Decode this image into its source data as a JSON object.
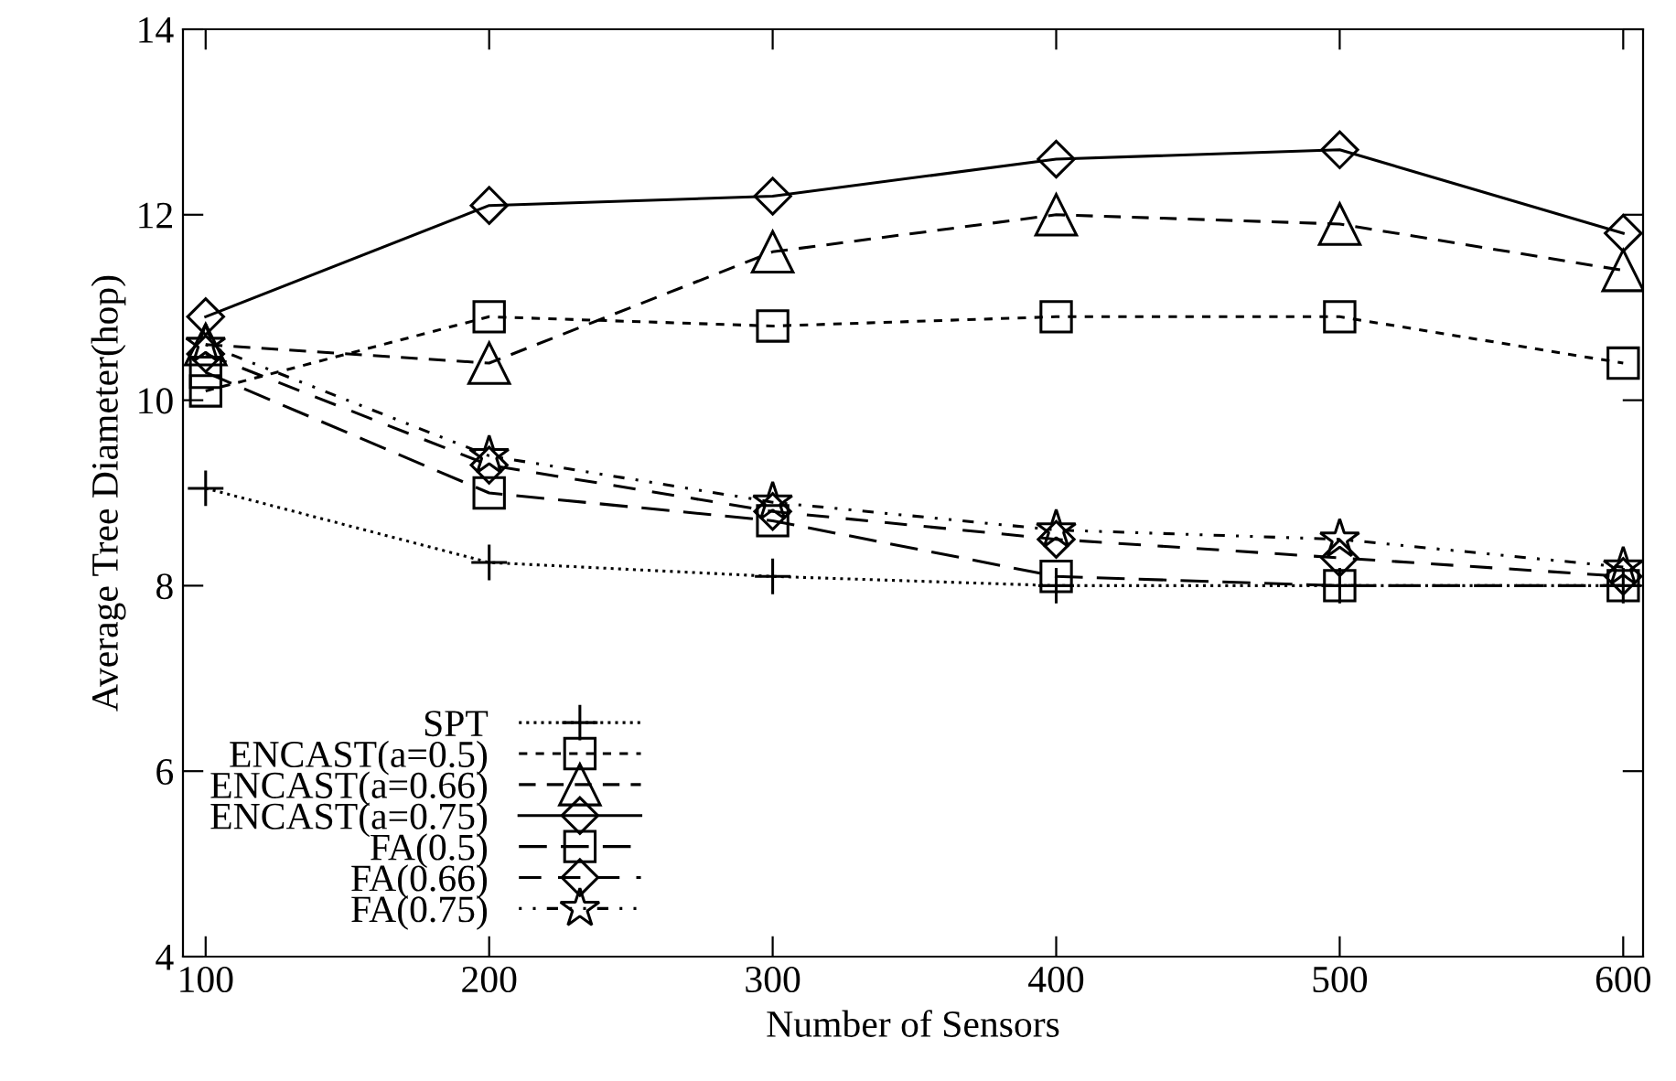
{
  "chart_data": {
    "type": "line",
    "xlabel": "Number of Sensors",
    "ylabel": "Average Tree Diameter(hop)",
    "x": [
      100,
      200,
      300,
      400,
      500,
      600
    ],
    "xlim": [
      92,
      607
    ],
    "xticks": [
      100,
      200,
      300,
      400,
      500,
      600
    ],
    "ylim": [
      4,
      14
    ],
    "yticks": [
      4,
      6,
      8,
      10,
      12,
      14
    ],
    "grid": false,
    "legend": "bottom left",
    "series": [
      {
        "name": "SPT",
        "color": "#000000",
        "marker": "cross",
        "line_style": "dotted",
        "values": [
          9.05,
          8.25,
          8.1,
          8.0,
          8.0,
          8.0
        ]
      },
      {
        "name": "ENCAST(a=0.5)",
        "color": "#000000",
        "marker": "square",
        "line_style": "dashed",
        "values": [
          10.1,
          10.9,
          10.8,
          10.9,
          10.9,
          10.4
        ]
      },
      {
        "name": "ENCAST(a=0.66)",
        "color": "#000000",
        "marker": "triangle",
        "line_style": "dashed",
        "values": [
          10.6,
          10.4,
          11.6,
          12.0,
          11.9,
          11.4
        ]
      },
      {
        "name": "ENCAST(a=0.75)",
        "color": "#000000",
        "marker": "diamond",
        "line_style": "solid",
        "values": [
          10.9,
          12.1,
          12.2,
          12.6,
          12.7,
          11.8
        ]
      },
      {
        "name": "FA(0.5)",
        "color": "#000000",
        "marker": "square",
        "line_style": "dashed",
        "values": [
          10.3,
          9.0,
          8.7,
          8.1,
          8.0,
          8.0
        ]
      },
      {
        "name": "FA(0.66)",
        "color": "#000000",
        "marker": "diamond",
        "line_style": "dashed",
        "values": [
          10.5,
          9.3,
          8.8,
          8.5,
          8.3,
          8.1
        ]
      },
      {
        "name": "FA(0.75)",
        "color": "#000000",
        "marker": "star",
        "line_style": "dotted",
        "values": [
          10.6,
          9.4,
          8.9,
          8.6,
          8.5,
          8.2
        ]
      }
    ]
  }
}
